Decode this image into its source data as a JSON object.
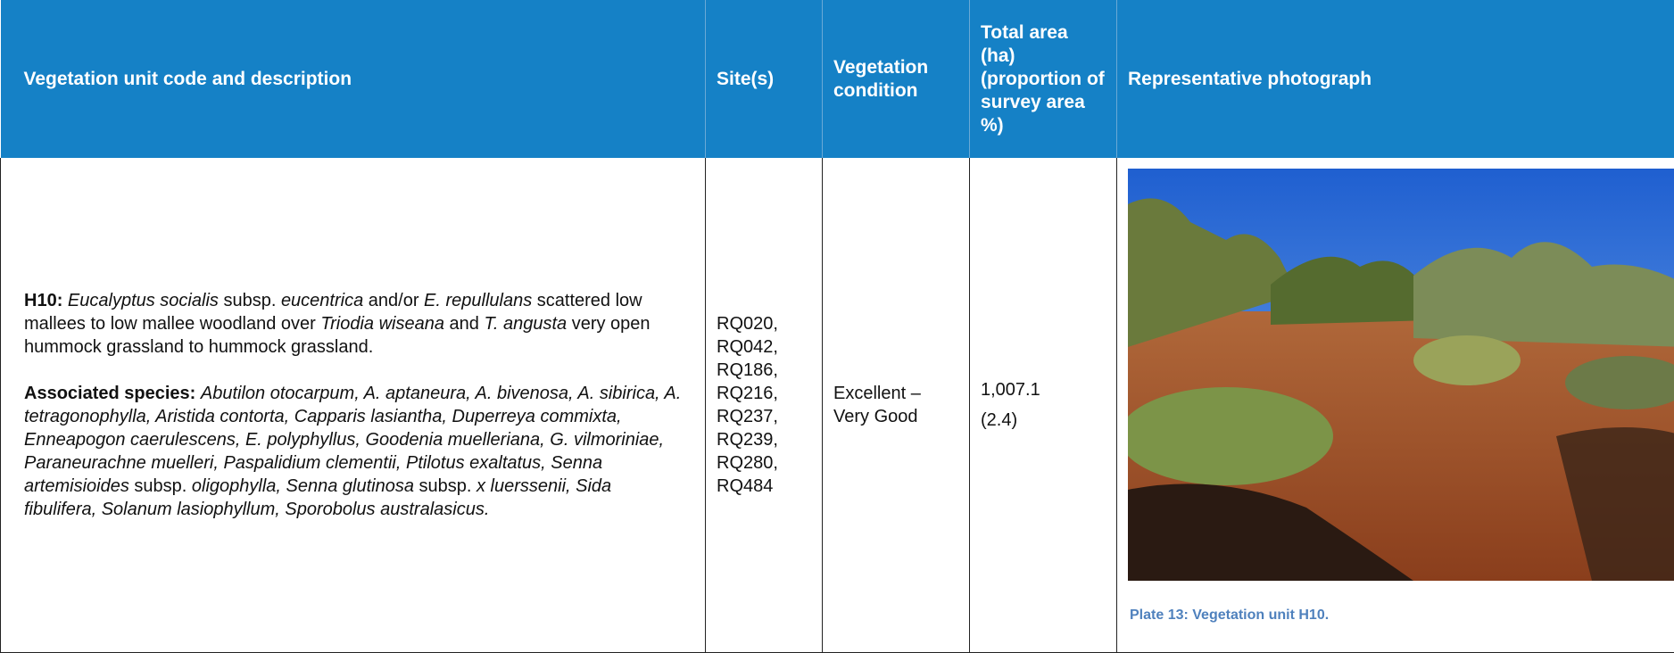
{
  "table": {
    "header": [
      "Vegetation unit code and description",
      "Site(s)",
      "Vegetation condition",
      "Total area (ha) (proportion of survey area %)",
      "Representative photograph"
    ],
    "rows": [
      {
        "description": [
          [
            {
              "text": "H10:",
              "bold": true
            },
            {
              "text": " "
            },
            {
              "text": "Eucalyptus socialis",
              "italic": true
            },
            {
              "text": " subsp. "
            },
            {
              "text": "eucentrica",
              "italic": true
            },
            {
              "text": " and/or "
            },
            {
              "text": "E. repullulans",
              "italic": true
            },
            {
              "text": " scattered low mallees to low mallee woodland over "
            },
            {
              "text": "Triodia wiseana",
              "italic": true
            },
            {
              "text": " and "
            },
            {
              "text": "T. angusta",
              "italic": true
            },
            {
              "text": " very open hummock grassland to hummock grassland."
            }
          ],
          [
            {
              "text": "Associated species:",
              "bold": true
            },
            {
              "text": " "
            },
            {
              "text": "Abutilon otocarpum, A. aptaneura, A. bivenosa, A. sibirica, A. tetragonophylla, Aristida contorta, Capparis lasiantha, Duperreya commixta, Enneapogon caerulescens, E. polyphyllus, Goodenia muelleriana, G. vilmoriniae, Paraneurachne muelleri, Paspalidium clementii, Ptilotus exaltatus, Senna artemisioides",
              "italic": true
            },
            {
              "text": " subsp. "
            },
            {
              "text": "oligophylla, Senna glutinosa",
              "italic": true
            },
            {
              "text": " subsp. "
            },
            {
              "text": "x luerssenii, Sida fibulifera, Solanum lasiophyllum, Sporobolus australasicus.",
              "italic": true
            }
          ]
        ],
        "sites": [
          "RQ020,",
          "RQ042,",
          "RQ186,",
          "RQ216,",
          "RQ237,",
          "RQ239,",
          "RQ280,",
          "RQ484"
        ],
        "condition": "Excellent – Very Good",
        "area": [
          "1,007.1",
          "(2.4)"
        ],
        "caption": "Plate 13: Vegetation unit H10."
      }
    ]
  }
}
